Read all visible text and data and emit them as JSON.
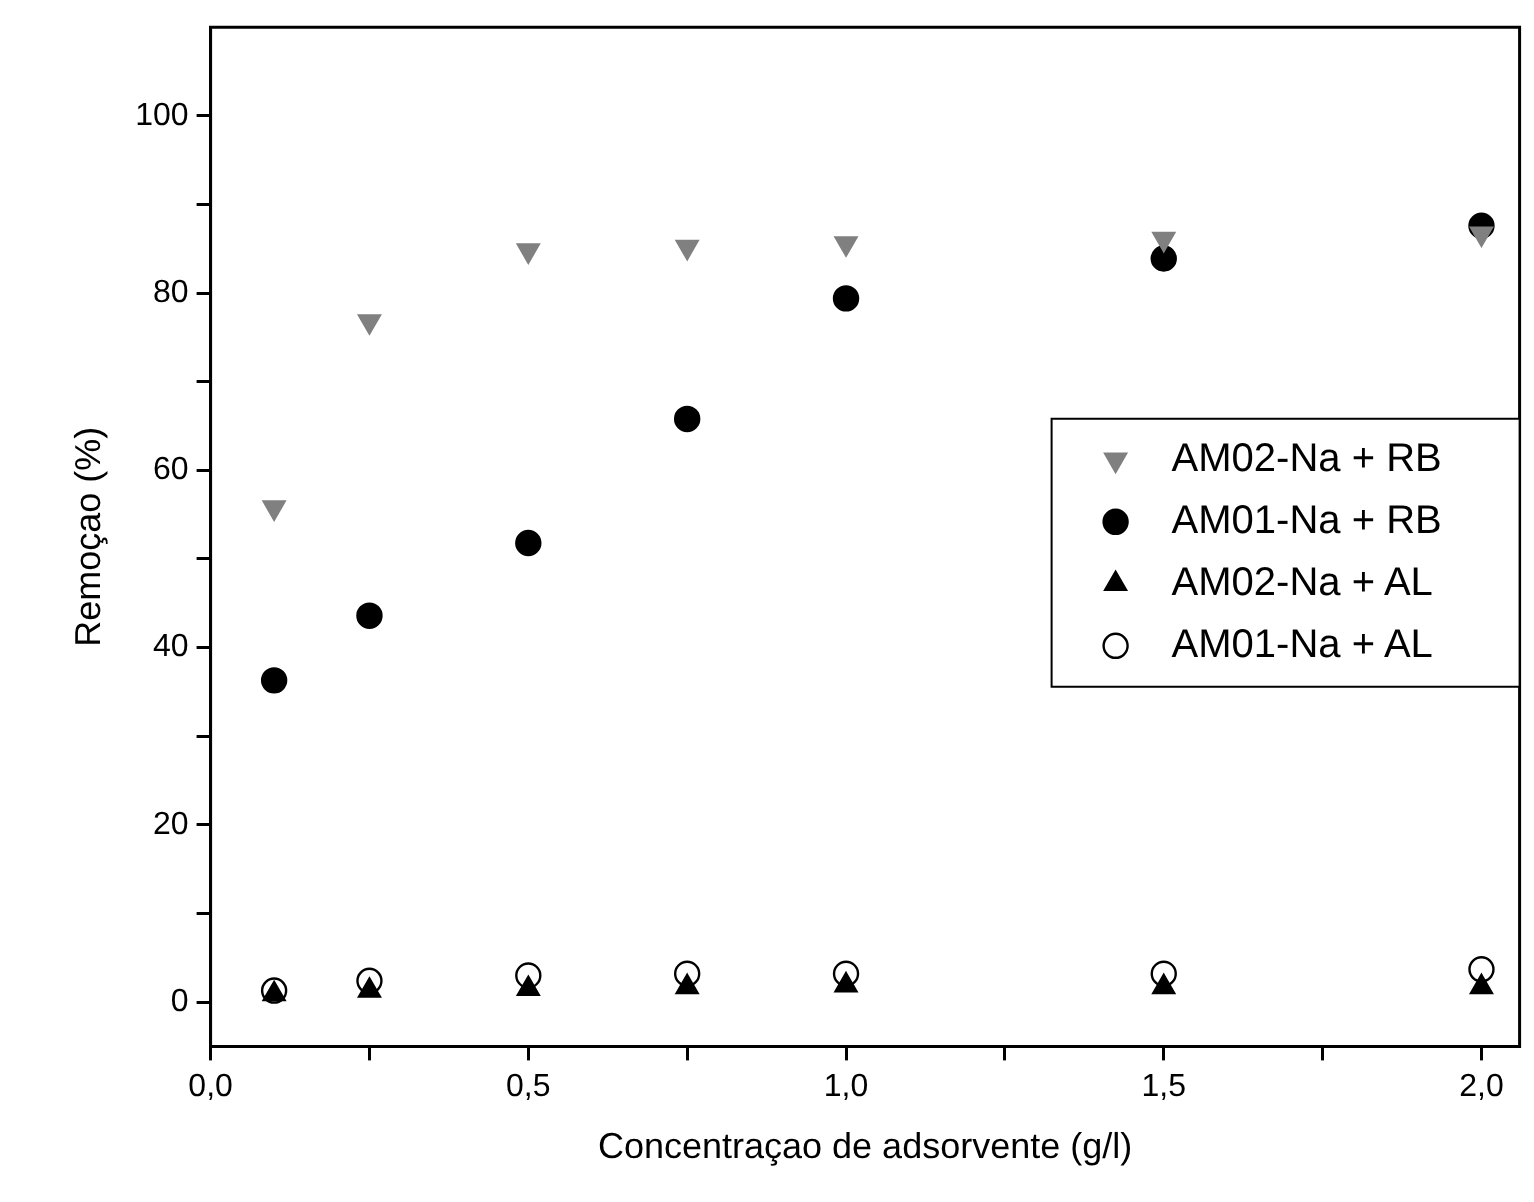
{
  "chart_data": {
    "type": "scatter",
    "xlabel": "Concentraçao de adsorvente (g/l)",
    "ylabel": "Remoçao (%)",
    "x": [
      0.1,
      0.25,
      0.5,
      0.75,
      1.0,
      1.5,
      2.0
    ],
    "series": [
      {
        "name": "AM02-Na + RB",
        "color": "#808080",
        "marker": "triangle-down",
        "values": [
          55.8,
          76.8,
          84.8,
          85.2,
          85.6,
          86.1,
          86.7
        ]
      },
      {
        "name": "AM01-Na + RB",
        "color": "#000000",
        "marker": "circle",
        "values": [
          36.3,
          43.6,
          51.8,
          65.8,
          79.4,
          83.9,
          87.6
        ]
      },
      {
        "name": "AM02-Na + AL",
        "color": "#000000",
        "marker": "triangle",
        "values": [
          0.9,
          1.3,
          1.5,
          1.7,
          1.9,
          1.7,
          1.7
        ]
      },
      {
        "name": "AM01-Na + AL",
        "color": "#000000",
        "marker": "circle-open",
        "values": [
          1.3,
          2.4,
          3.0,
          3.2,
          3.2,
          3.2,
          3.7
        ]
      }
    ],
    "xlim": [
      0,
      2.06
    ],
    "xticks": [
      {
        "value": 0,
        "label": "0,0"
      },
      {
        "value": 0.25,
        "label": null
      },
      {
        "value": 0.5,
        "label": "0,5"
      },
      {
        "value": 0.75,
        "label": null
      },
      {
        "value": 1.0,
        "label": "1,0"
      },
      {
        "value": 1.25,
        "label": null
      },
      {
        "value": 1.5,
        "label": "1,5"
      },
      {
        "value": 1.75,
        "label": null
      },
      {
        "value": 2.0,
        "label": "2,0"
      }
    ],
    "ylim": [
      -5,
      110
    ],
    "yticks": [
      0,
      {
        "value": 10,
        "label": null
      },
      20,
      {
        "value": 30,
        "label": null
      },
      40,
      {
        "value": 50,
        "label": null
      },
      60,
      {
        "value": 70,
        "label": null
      },
      80,
      {
        "value": 90,
        "label": null
      },
      100
    ],
    "grid": false,
    "legend": "right"
  }
}
